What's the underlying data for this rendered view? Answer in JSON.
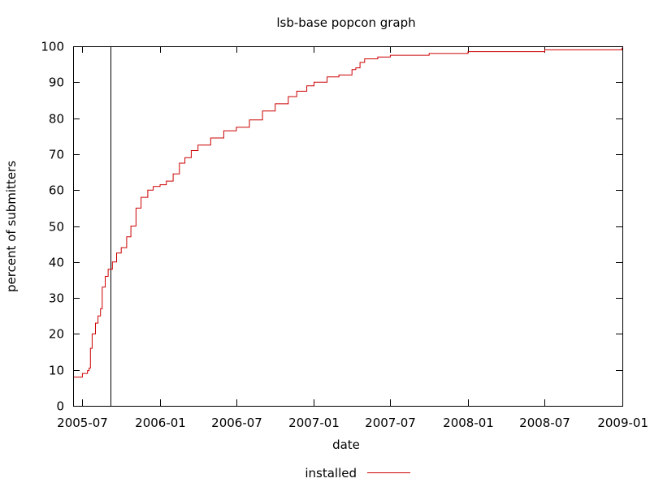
{
  "chart_data": {
    "type": "line",
    "title": "lsb-base popcon graph",
    "xlabel": "date",
    "ylabel": "percent of submitters",
    "x_ticks": [
      "2005-07",
      "2006-01",
      "2006-07",
      "2007-01",
      "2007-07",
      "2008-01",
      "2008-07",
      "2009-01"
    ],
    "y_ticks": [
      "0",
      "10",
      "20",
      "30",
      "40",
      "50",
      "60",
      "70",
      "80",
      "90",
      "100"
    ],
    "xlim": [
      "2005-06-09",
      "2009-01-01"
    ],
    "ylim": [
      0,
      100
    ],
    "grid": false,
    "legend_position": "bottom-center",
    "marker_line_date": "2005-09-06",
    "series": [
      {
        "name": "installed",
        "color": "#cc0000",
        "step": true,
        "x": [
          "2005-06-09",
          "2005-07-01",
          "2005-07-13",
          "2005-07-17",
          "2005-07-20",
          "2005-07-24",
          "2005-08-01",
          "2005-08-07",
          "2005-08-13",
          "2005-08-17",
          "2005-08-24",
          "2005-08-31",
          "2005-09-10",
          "2005-09-20",
          "2005-10-01",
          "2005-10-14",
          "2005-10-24",
          "2005-11-05",
          "2005-11-17",
          "2005-12-03",
          "2005-12-16",
          "2006-01-01",
          "2006-01-16",
          "2006-02-01",
          "2006-02-16",
          "2006-03-01",
          "2006-03-16",
          "2006-04-01",
          "2006-05-01",
          "2006-06-01",
          "2006-07-01",
          "2006-08-01",
          "2006-09-01",
          "2006-10-01",
          "2006-11-01",
          "2006-11-21",
          "2006-12-15",
          "2007-01-01",
          "2007-02-01",
          "2007-03-01",
          "2007-04-01",
          "2007-04-10",
          "2007-04-20",
          "2007-05-01",
          "2007-06-01",
          "2007-07-01",
          "2007-10-01",
          "2008-01-01",
          "2008-07-01",
          "2008-12-31"
        ],
        "y": [
          8,
          9,
          9.8,
          10.5,
          16,
          20,
          23,
          25,
          27,
          33,
          36,
          38,
          40,
          42.5,
          44,
          47,
          50,
          55,
          58,
          60,
          61,
          61.5,
          62.5,
          64.5,
          67.5,
          69,
          71,
          72.5,
          74.5,
          76.5,
          77.5,
          79.5,
          82,
          84,
          86,
          87.5,
          89,
          90,
          91.5,
          92,
          93.5,
          94,
          95.5,
          96.5,
          97,
          97.5,
          98,
          98.5,
          99,
          99.5
        ]
      }
    ]
  }
}
